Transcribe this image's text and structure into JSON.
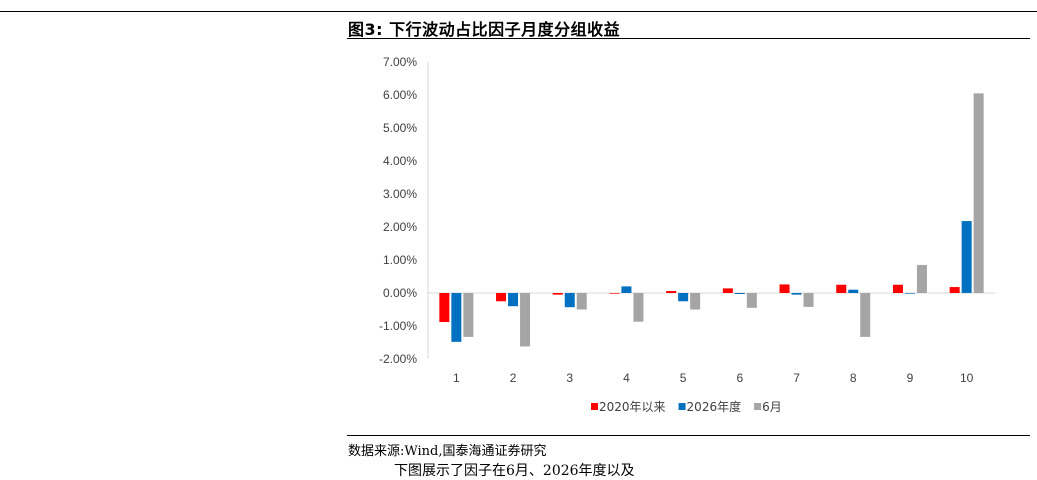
{
  "figure": {
    "title": "图3:  下行波动占比因子月度分组收益",
    "source": "数据来源:Wind,国泰海通证券研究",
    "body_text": "下图展示了因子在6月、2026年度以及"
  },
  "chart_data": {
    "type": "bar",
    "title": "",
    "xlabel": "",
    "ylabel": "",
    "categories": [
      "1",
      "2",
      "3",
      "4",
      "5",
      "6",
      "7",
      "8",
      "9",
      "10"
    ],
    "ylim": [
      -0.02,
      0.07
    ],
    "yticks": [
      "-2.00%",
      "-1.00%",
      "0.00%",
      "1.00%",
      "2.00%",
      "3.00%",
      "4.00%",
      "5.00%",
      "6.00%",
      "7.00%"
    ],
    "grid": false,
    "legend_position": "bottom",
    "series": [
      {
        "name": "2020年以来",
        "color": "#ff0000",
        "values": [
          -0.0088,
          -0.0025,
          -0.0005,
          -0.0002,
          0.0006,
          0.0014,
          0.0026,
          0.0025,
          0.0025,
          0.0018
        ]
      },
      {
        "name": "2026年度",
        "color": "#0070c0",
        "values": [
          -0.0148,
          -0.004,
          -0.0043,
          0.002,
          -0.0025,
          -0.0003,
          -0.0005,
          0.001,
          -0.0002,
          0.0218
        ]
      },
      {
        "name": "6月",
        "color": "#a5a5a5",
        "values": [
          -0.0133,
          -0.0162,
          -0.005,
          -0.0087,
          -0.005,
          -0.0045,
          -0.0042,
          -0.0133,
          0.0085,
          0.0605
        ]
      }
    ]
  }
}
